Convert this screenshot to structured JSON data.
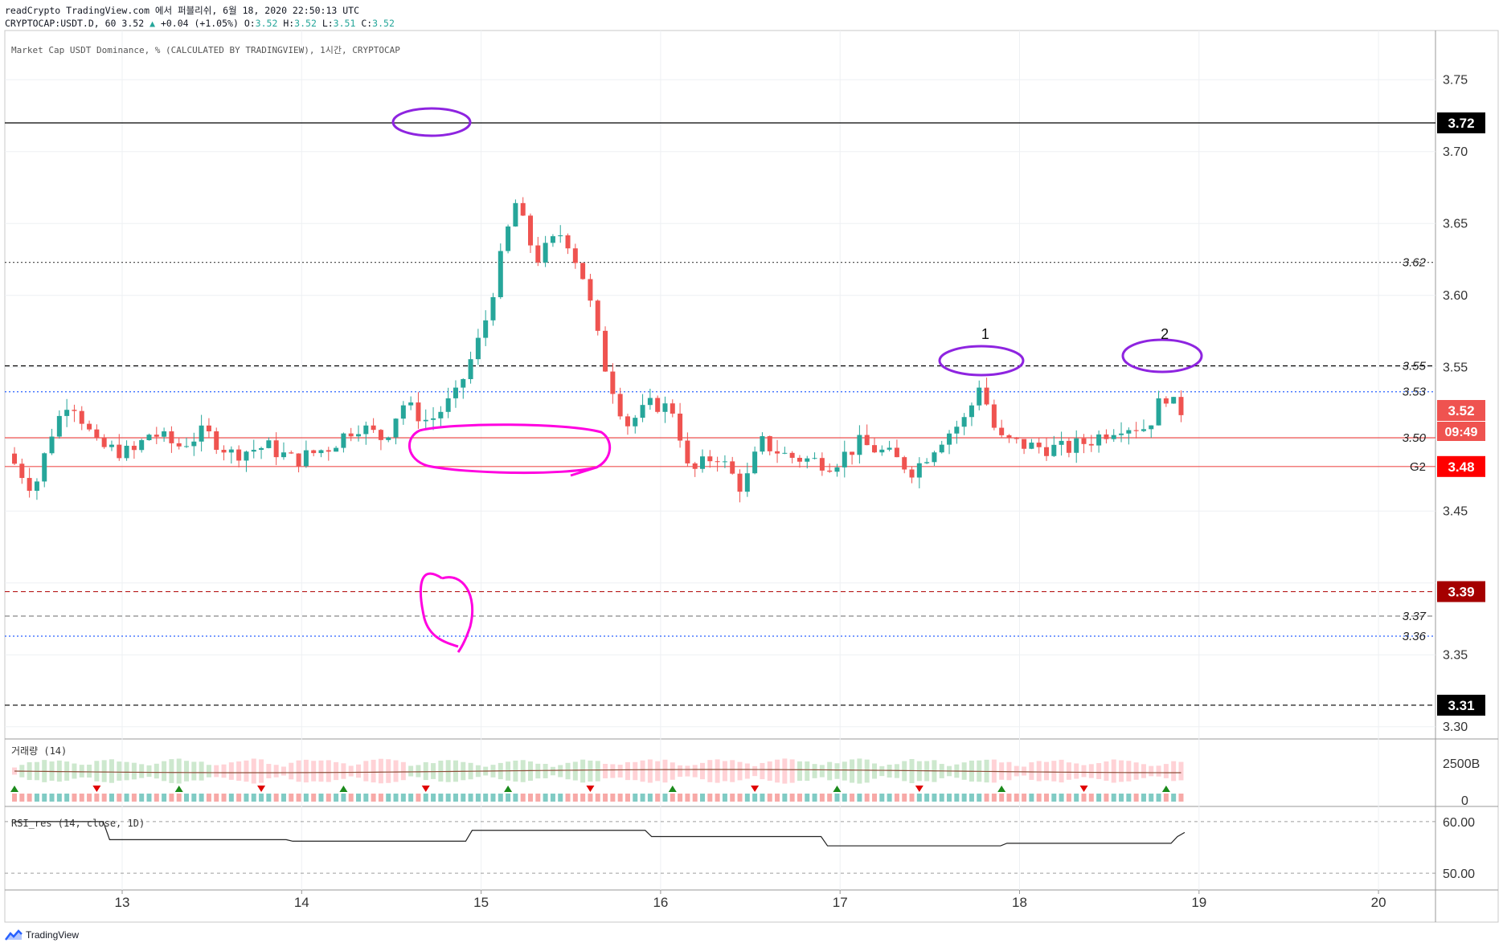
{
  "header": {
    "line1": "readCrypto TradingView.com 에서 퍼블리쉬, 6월 18, 2020 22:50:13 UTC",
    "symbol": "CRYPTOCAP:USDT.D, 60",
    "last": "3.52",
    "change": "+0.04 (+1.05%)",
    "o_label": "O:",
    "o": "3.52",
    "h_label": "H:",
    "h": "3.52",
    "l_label": "L:",
    "l": "3.51",
    "c_label": "C:",
    "c": "3.52"
  },
  "pane_title": "Market Cap USDT Dominance, % (CALCULATED BY TRADINGVIEW), 1시간, CRYPTOCAP",
  "volume_title": "거래량 (14)",
  "rsi_title": "RSI_res (14, close, 1D)",
  "brand": "TradingView",
  "colors": {
    "up": "#26a69a",
    "down": "#ef5350",
    "marker_ellipse": "#8e24e0",
    "marker_pink": "#ff00e0"
  },
  "chart_data": {
    "type": "candlestick",
    "x_ticks": [
      "13",
      "14",
      "15",
      "16",
      "17",
      "18",
      "19",
      "20"
    ],
    "y_ticks": [
      "3.75",
      "3.70",
      "3.65",
      "3.60",
      "3.55",
      "3.45",
      "3.35",
      "3.30"
    ],
    "ylim": [
      3.295,
      3.785
    ],
    "hlines": [
      {
        "value": 3.72,
        "label": "3.72",
        "style": "solid",
        "color": "#000000",
        "badge": true,
        "badge_color": "#000000"
      },
      {
        "value": 3.623,
        "label": "3.62",
        "style": "dotted",
        "color": "#555555",
        "badge": false
      },
      {
        "value": 3.551,
        "label": "3.55",
        "style": "dashed",
        "color": "#000000",
        "badge": false
      },
      {
        "value": 3.533,
        "label": "3.53",
        "style": "dotted",
        "color": "#2962ff",
        "badge": false
      },
      {
        "value": 3.501,
        "label": "3.50",
        "style": "solid",
        "color": "#ef5350",
        "badge": false
      },
      {
        "value": 3.481,
        "label": "G2",
        "style": "solid",
        "color": "#ef5350",
        "badge": true,
        "badge_text": "3.48",
        "badge_color": "#ff0000"
      },
      {
        "value": 3.394,
        "label": "3.39",
        "style": "dashed",
        "color": "#b71c1c",
        "badge": true,
        "badge_color": "#a50000"
      },
      {
        "value": 3.377,
        "label": "3.37",
        "style": "dashed",
        "color": "#888888",
        "badge": false
      },
      {
        "value": 3.363,
        "label": "3.36",
        "style": "dotted",
        "color": "#2962ff",
        "badge": false
      },
      {
        "value": 3.315,
        "label": "3.31",
        "style": "dashed",
        "color": "#000000",
        "badge": true,
        "badge_color": "#000000"
      }
    ],
    "last_price": {
      "value": 3.52,
      "label": "3.52",
      "countdown": "09:49",
      "color": "#ef5350"
    },
    "annotations": [
      {
        "text": "1",
        "day": 17.8,
        "price": 3.562
      },
      {
        "text": "2",
        "day": 18.8,
        "price": 3.562
      }
    ],
    "anchors": [
      [
        12.4,
        3.49
      ],
      [
        12.55,
        3.465
      ],
      [
        12.65,
        3.505
      ],
      [
        12.75,
        3.53
      ],
      [
        12.9,
        3.495
      ],
      [
        13.1,
        3.49
      ],
      [
        13.2,
        3.505
      ],
      [
        13.35,
        3.495
      ],
      [
        13.5,
        3.505
      ],
      [
        13.65,
        3.49
      ],
      [
        13.85,
        3.495
      ],
      [
        14.0,
        3.485
      ],
      [
        14.2,
        3.495
      ],
      [
        14.35,
        3.51
      ],
      [
        14.5,
        3.5
      ],
      [
        14.6,
        3.525
      ],
      [
        14.75,
        3.512
      ],
      [
        14.9,
        3.53
      ],
      [
        15.05,
        3.575
      ],
      [
        15.15,
        3.625
      ],
      [
        15.23,
        3.665
      ],
      [
        15.35,
        3.625
      ],
      [
        15.5,
        3.645
      ],
      [
        15.62,
        3.61
      ],
      [
        15.72,
        3.555
      ],
      [
        15.85,
        3.51
      ],
      [
        16.0,
        3.525
      ],
      [
        16.12,
        3.52
      ],
      [
        16.2,
        3.475
      ],
      [
        16.35,
        3.49
      ],
      [
        16.5,
        3.465
      ],
      [
        16.6,
        3.498
      ],
      [
        16.75,
        3.488
      ],
      [
        17.0,
        3.483
      ],
      [
        17.15,
        3.497
      ],
      [
        17.3,
        3.49
      ],
      [
        17.45,
        3.478
      ],
      [
        17.6,
        3.5
      ],
      [
        17.75,
        3.515
      ],
      [
        17.82,
        3.54
      ],
      [
        17.92,
        3.5
      ],
      [
        18.1,
        3.495
      ],
      [
        18.3,
        3.493
      ],
      [
        18.45,
        3.5
      ],
      [
        18.6,
        3.51
      ],
      [
        18.75,
        3.508
      ],
      [
        18.85,
        3.532
      ],
      [
        18.92,
        3.52
      ]
    ],
    "volume": {
      "ylim": [
        0,
        2500
      ],
      "ytick": "2500B"
    },
    "rsi": {
      "ylim": [
        48,
        62
      ],
      "y_ticks": [
        "60.00",
        "50.00"
      ],
      "steps": [
        [
          12.4,
          60.0
        ],
        [
          12.93,
          56.5
        ],
        [
          13.95,
          56.2
        ],
        [
          14.95,
          58.3
        ],
        [
          15.95,
          57.1
        ],
        [
          16.93,
          55.3
        ],
        [
          17.93,
          55.8
        ],
        [
          18.88,
          57.1
        ]
      ]
    }
  }
}
